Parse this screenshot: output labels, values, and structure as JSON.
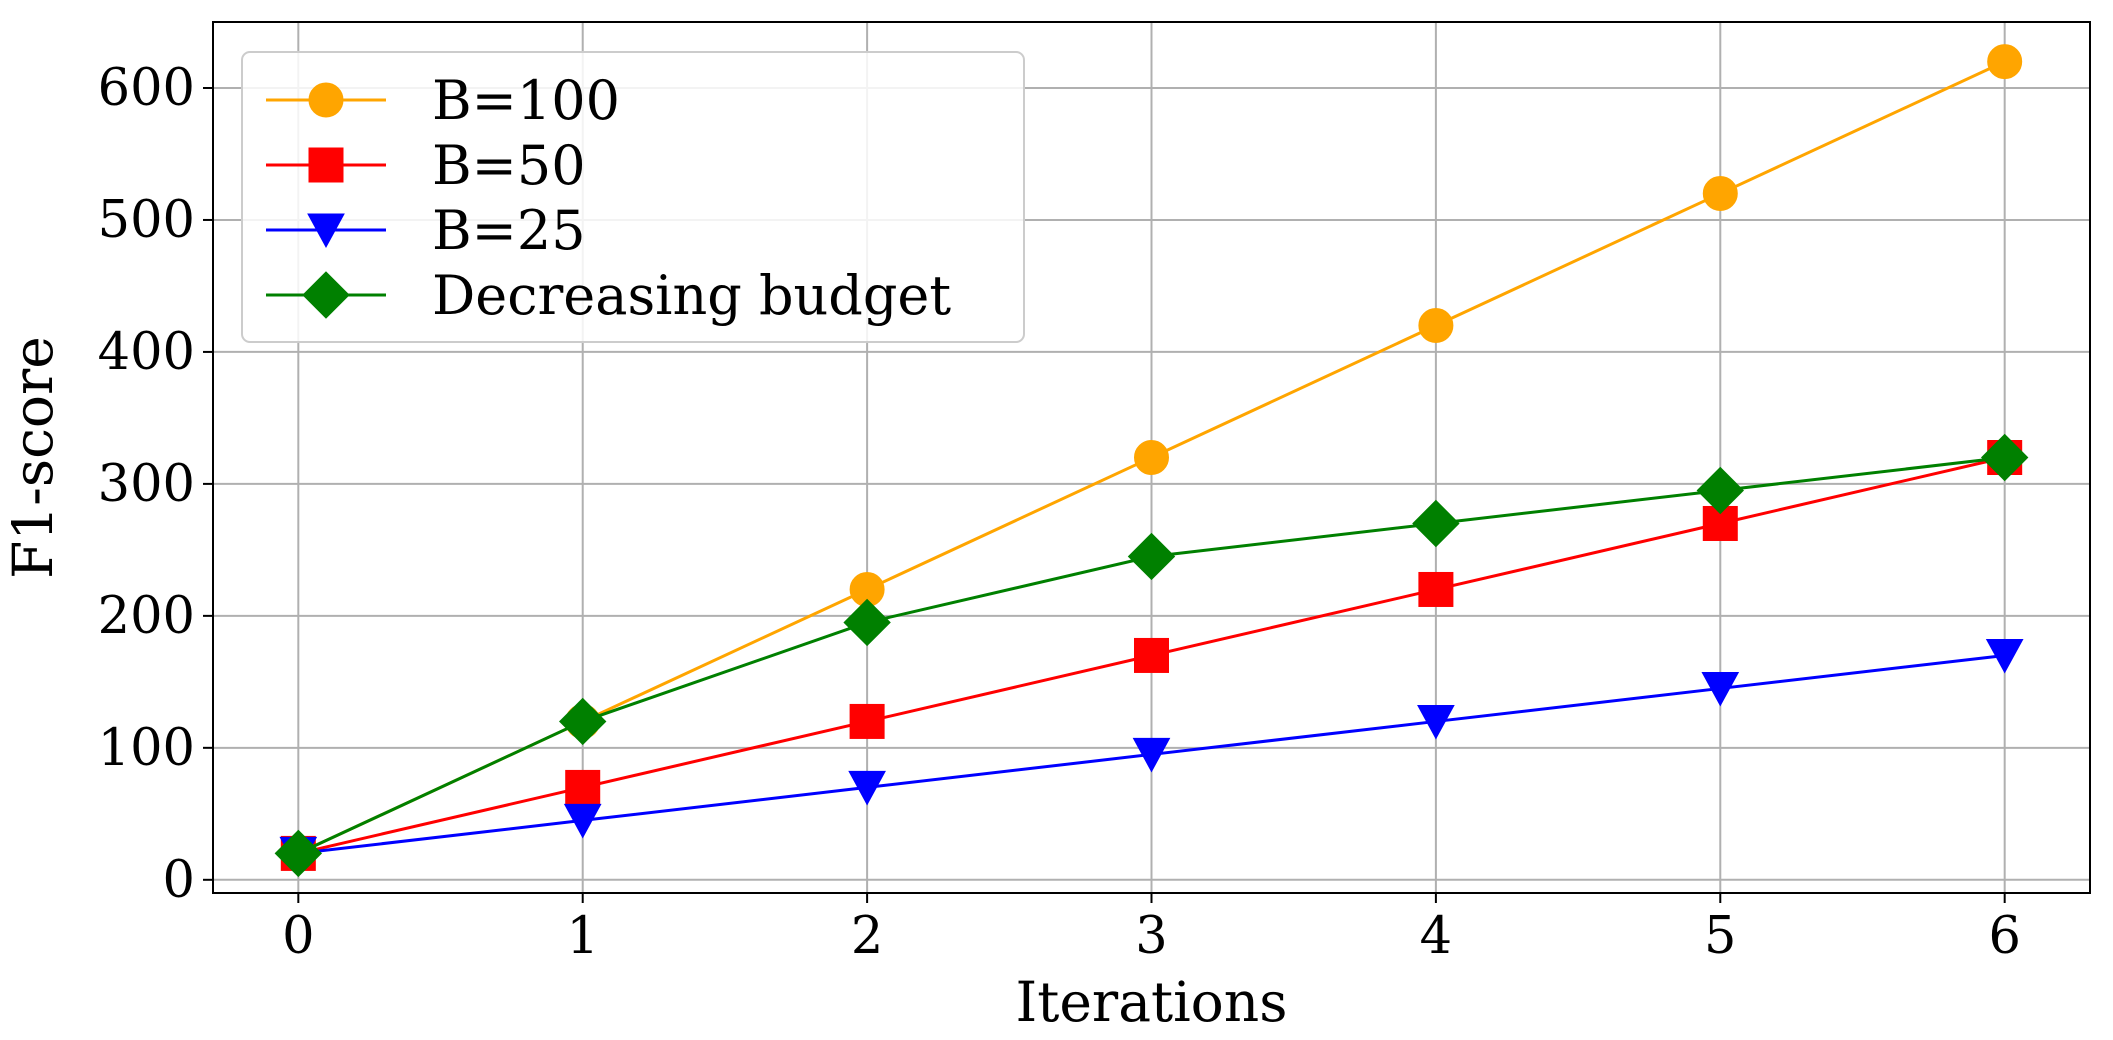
{
  "chart_data": {
    "type": "line",
    "title": "",
    "xlabel": "Iterations",
    "ylabel": "F1-score",
    "xlim": [
      -0.3,
      6.3
    ],
    "ylim": [
      -10,
      650
    ],
    "xticks": [
      0,
      1,
      2,
      3,
      4,
      5,
      6
    ],
    "yticks": [
      0,
      100,
      200,
      300,
      400,
      500,
      600
    ],
    "grid": true,
    "legend_position": "upper-left",
    "x": [
      0,
      1,
      2,
      3,
      4,
      5,
      6
    ],
    "series": [
      {
        "name": "B=100",
        "color": "#FFA500",
        "marker": "circle",
        "values": [
          20,
          120,
          220,
          320,
          420,
          520,
          620
        ]
      },
      {
        "name": "B=50",
        "color": "#FF0000",
        "marker": "square",
        "values": [
          20,
          70,
          120,
          170,
          220,
          270,
          320
        ]
      },
      {
        "name": "B=25",
        "color": "#0000FF",
        "marker": "triangle-down",
        "values": [
          20,
          45,
          70,
          95,
          120,
          145,
          170
        ]
      },
      {
        "name": "Decreasing budget",
        "color": "#008000",
        "marker": "diamond",
        "values": [
          20,
          120,
          195,
          245,
          270,
          295,
          320
        ]
      }
    ]
  }
}
